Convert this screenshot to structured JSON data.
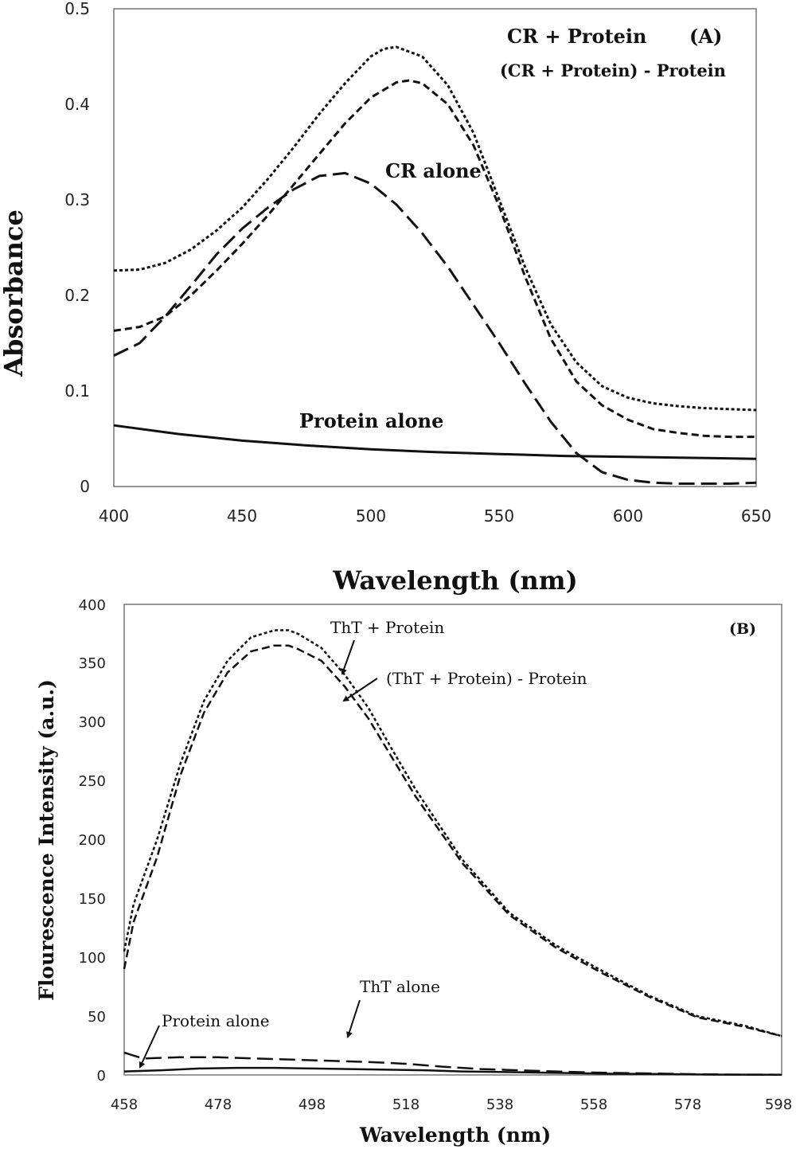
{
  "chart_data": [
    {
      "type": "line",
      "panel_label": "(A)",
      "xlabel": "Wavelength (nm)",
      "ylabel": "Absorbance",
      "xlim": [
        400,
        650
      ],
      "ylim": [
        0,
        0.5
      ],
      "xticks": [
        "400",
        "450",
        "500",
        "550",
        "600",
        "650"
      ],
      "yticks": [
        "0",
        "0.1",
        "0.2",
        "0.3",
        "0.4",
        "0.5"
      ],
      "grid": false,
      "series": [
        {
          "name": "CR + Protein",
          "x": [
            400,
            410,
            420,
            430,
            440,
            450,
            460,
            470,
            480,
            490,
            500,
            505,
            510,
            520,
            530,
            540,
            550,
            560,
            570,
            580,
            590,
            600,
            610,
            620,
            630,
            640,
            650
          ],
          "y": [
            0.226,
            0.227,
            0.234,
            0.248,
            0.268,
            0.292,
            0.322,
            0.355,
            0.39,
            0.422,
            0.45,
            0.458,
            0.46,
            0.45,
            0.42,
            0.37,
            0.3,
            0.23,
            0.17,
            0.13,
            0.105,
            0.093,
            0.087,
            0.084,
            0.082,
            0.081,
            0.08
          ]
        },
        {
          "name": "(CR + Protein) - Protein",
          "x": [
            400,
            410,
            420,
            430,
            440,
            450,
            460,
            470,
            480,
            490,
            500,
            510,
            515,
            520,
            530,
            540,
            550,
            560,
            570,
            580,
            590,
            600,
            610,
            620,
            630,
            640,
            650
          ],
          "y": [
            0.163,
            0.167,
            0.178,
            0.2,
            0.226,
            0.254,
            0.284,
            0.316,
            0.348,
            0.38,
            0.407,
            0.423,
            0.425,
            0.422,
            0.4,
            0.357,
            0.293,
            0.22,
            0.155,
            0.11,
            0.085,
            0.07,
            0.06,
            0.056,
            0.053,
            0.052,
            0.052
          ]
        },
        {
          "name": "CR alone",
          "x": [
            400,
            410,
            420,
            430,
            440,
            450,
            460,
            470,
            480,
            490,
            500,
            510,
            520,
            530,
            540,
            550,
            560,
            570,
            580,
            590,
            600,
            610,
            620,
            630,
            640,
            650
          ],
          "y": [
            0.137,
            0.15,
            0.178,
            0.21,
            0.243,
            0.27,
            0.292,
            0.311,
            0.325,
            0.328,
            0.317,
            0.295,
            0.265,
            0.23,
            0.19,
            0.15,
            0.108,
            0.068,
            0.035,
            0.015,
            0.007,
            0.004,
            0.003,
            0.003,
            0.003,
            0.004
          ]
        },
        {
          "name": "Protein alone",
          "x": [
            400,
            425,
            450,
            475,
            500,
            525,
            550,
            575,
            600,
            625,
            650
          ],
          "y": [
            0.064,
            0.055,
            0.048,
            0.043,
            0.039,
            0.036,
            0.034,
            0.032,
            0.031,
            0.03,
            0.029
          ]
        }
      ]
    },
    {
      "type": "line",
      "panel_label": "(B)",
      "xlabel": "Wavelength (nm)",
      "ylabel": "Flourescence Intensity (a.u.)",
      "xlim": [
        458,
        598
      ],
      "ylim": [
        0,
        400
      ],
      "xticks": [
        "458",
        "478",
        "498",
        "518",
        "538",
        "558",
        "578",
        "598"
      ],
      "yticks": [
        "0",
        "50",
        "100",
        "150",
        "200",
        "250",
        "300",
        "350",
        "400"
      ],
      "grid": false,
      "series": [
        {
          "name": "ThT  + Protein",
          "x": [
            458,
            460,
            465,
            470,
            475,
            480,
            485,
            490,
            493,
            495,
            500,
            505,
            510,
            515,
            520,
            530,
            540,
            550,
            560,
            570,
            580,
            590,
            598
          ],
          "y": [
            105,
            145,
            200,
            265,
            318,
            352,
            372,
            378,
            378,
            375,
            363,
            340,
            312,
            277,
            243,
            183,
            138,
            110,
            88,
            67,
            50,
            42,
            33
          ]
        },
        {
          "name": "(ThT + Protein) - Protein",
          "x": [
            458,
            460,
            465,
            470,
            475,
            480,
            485,
            490,
            493,
            495,
            500,
            505,
            510,
            515,
            520,
            530,
            540,
            550,
            560,
            570,
            580,
            590,
            598
          ],
          "y": [
            90,
            130,
            185,
            255,
            308,
            342,
            360,
            365,
            365,
            362,
            352,
            330,
            303,
            270,
            237,
            180,
            136,
            108,
            86,
            66,
            49,
            41,
            33
          ]
        },
        {
          "name": "ThT alone",
          "x": [
            458,
            462,
            470,
            478,
            486,
            494,
            502,
            510,
            518,
            526,
            534,
            542,
            550,
            558,
            566,
            574,
            582,
            590,
            598
          ],
          "y": [
            19,
            14,
            15,
            15,
            14,
            13,
            12,
            11,
            9.5,
            7,
            5,
            4,
            3,
            2,
            1.5,
            1,
            0.5,
            0.3,
            0.2
          ]
        },
        {
          "name": "Protein alone",
          "x": [
            458,
            466,
            474,
            482,
            490,
            498,
            506,
            514,
            522,
            530,
            538,
            546,
            554,
            562,
            570,
            578,
            586,
            598
          ],
          "y": [
            3,
            4,
            5.5,
            6,
            6,
            5.5,
            5,
            4.5,
            4,
            3,
            2.5,
            2,
            1.5,
            1,
            0.8,
            0.5,
            0.3,
            0.2
          ]
        }
      ],
      "annotations": [
        "ThT  + Protein",
        "(ThT + Protein) - Protein",
        "ThT alone",
        "Protein alone"
      ]
    }
  ]
}
